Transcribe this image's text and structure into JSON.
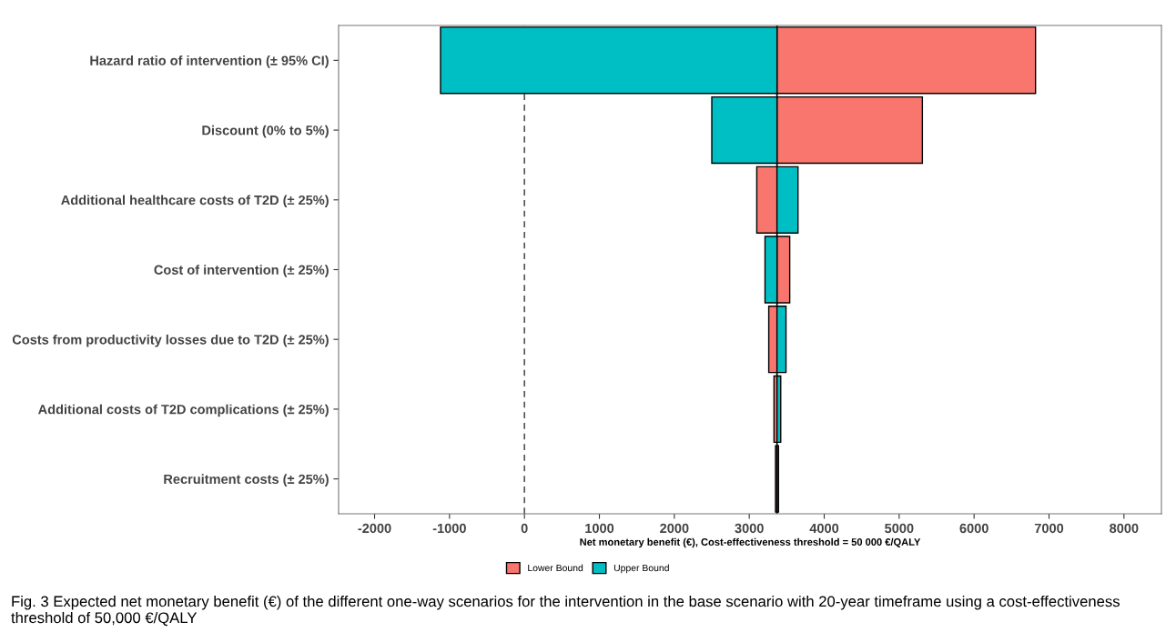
{
  "chart_data": {
    "type": "bar",
    "orientation": "horizontal",
    "xlabel": "Net monetary benefit (€), Cost-effectiveness threshold = 50 000 €/QALY",
    "categories": [
      "Hazard ratio of intervention (± 95% CI)",
      "Discount (0% to 5%)",
      "Additional healthcare costs of T2D (± 25%)",
      "Cost of intervention (± 25%)",
      "Costs from productivity losses due to T2D (± 25%)",
      "Additional costs of T2D complications (± 25%)",
      "Recruitment costs (± 25%)"
    ],
    "series": [
      {
        "name": "Lower Bound",
        "color": "#f8766d",
        "base": [
          3370,
          3370,
          3370,
          3370,
          3370,
          3370,
          3370
        ],
        "values": [
          3450,
          1940,
          -270,
          170,
          -110,
          -40,
          -20
        ]
      },
      {
        "name": "Upper Bound",
        "color": "#00bfc4",
        "base": [
          3370,
          3370,
          3370,
          3370,
          3370,
          3370,
          3370
        ],
        "values": [
          -4490,
          -870,
          280,
          -160,
          120,
          50,
          20
        ]
      }
    ],
    "xlim": [
      -2480,
      8500
    ],
    "xticks": [
      -2000,
      -1000,
      0,
      1000,
      2000,
      3000,
      4000,
      5000,
      6000,
      7000,
      8000
    ],
    "ref_lines": [
      {
        "axis": "x",
        "value": 0,
        "line_style": "dashed",
        "color": "#555555"
      },
      {
        "axis": "x",
        "value": 3370,
        "line_style": "solid",
        "color": "#000000"
      }
    ],
    "grid": false,
    "legend": "bottom",
    "annotations": [
      "Fig. 3 Expected net monetary benefit (€) of the different one-way scenarios for the intervention in the base scenario with 20-year timeframe using a cost-effectiveness threshold of 50,000 €/QALY"
    ]
  }
}
